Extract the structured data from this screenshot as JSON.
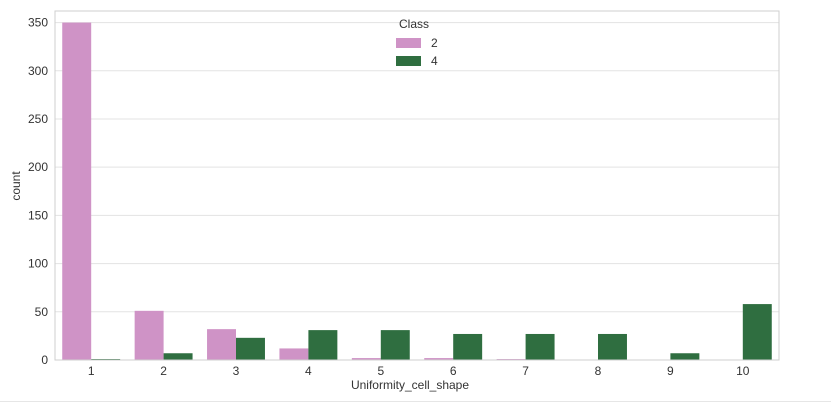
{
  "chart_data": {
    "type": "bar",
    "xlabel": "Uniformity_cell_shape",
    "ylabel": "count",
    "categories": [
      "1",
      "2",
      "3",
      "4",
      "5",
      "6",
      "7",
      "8",
      "9",
      "10"
    ],
    "series": [
      {
        "name": "2",
        "color": "#cf93c6",
        "values": [
          350,
          51,
          32,
          12,
          2,
          2,
          1,
          0,
          0,
          0
        ]
      },
      {
        "name": "4",
        "color": "#2f6e40",
        "values": [
          1,
          7,
          23,
          31,
          31,
          27,
          27,
          27,
          7,
          58
        ]
      }
    ],
    "ylim": [
      0,
      362
    ],
    "yticks": [
      0,
      50,
      100,
      150,
      200,
      250,
      300,
      350
    ],
    "grid": true,
    "legend": {
      "title": "Class",
      "placement": "top-center",
      "entries": [
        "2",
        "4"
      ]
    }
  }
}
